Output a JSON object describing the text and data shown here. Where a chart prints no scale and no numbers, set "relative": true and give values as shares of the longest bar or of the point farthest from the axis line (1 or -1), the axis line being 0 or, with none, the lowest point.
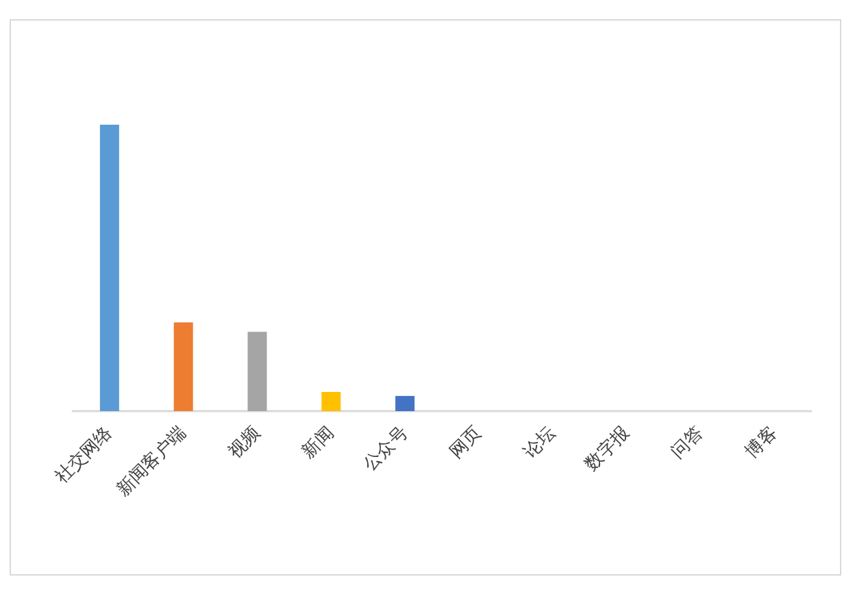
{
  "chart_data": {
    "type": "bar",
    "relative": true,
    "categories": [
      "社交网络",
      "新闻客户端",
      "视频",
      "新闻",
      "公众号",
      "网页",
      "论坛",
      "数字报",
      "问答",
      "博客"
    ],
    "values": [
      1,
      0.31,
      0.277,
      0.067,
      0.053,
      0,
      0,
      0,
      0,
      0
    ],
    "colors": [
      "#5b9bd5",
      "#ed7d31",
      "#a5a5a5",
      "#ffc000",
      "#4472c4",
      "#70ad47",
      "#264478",
      "#9e480e",
      "#636363",
      "#997300"
    ]
  }
}
